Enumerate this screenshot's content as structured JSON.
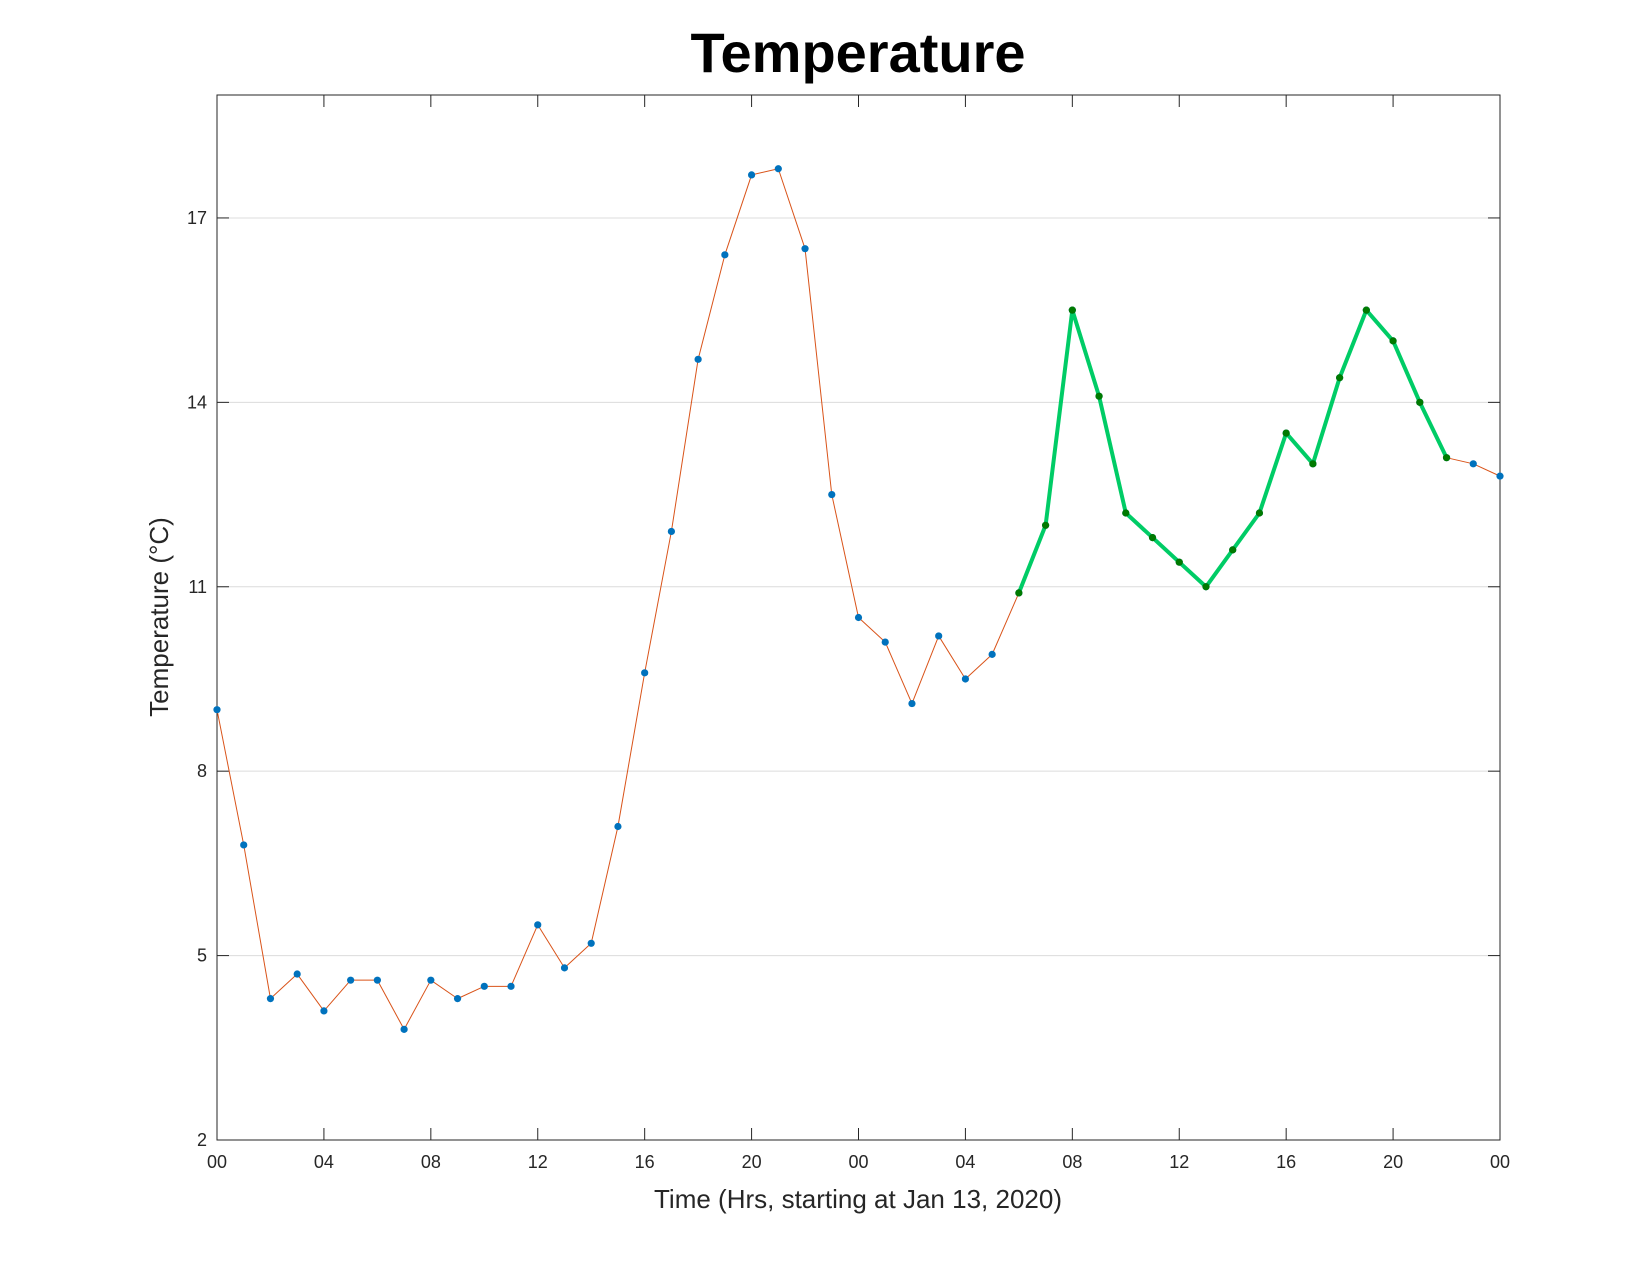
{
  "chart_data": {
    "type": "line",
    "title": "Temperature",
    "xlabel": "Time (Hrs, starting at Jan 13, 2020)",
    "ylabel": "Temperature (°C)",
    "x": [
      0,
      1,
      2,
      3,
      4,
      5,
      6,
      7,
      8,
      9,
      10,
      11,
      12,
      13,
      14,
      15,
      16,
      17,
      18,
      19,
      20,
      21,
      22,
      23,
      24,
      25,
      26,
      27,
      28,
      29,
      30,
      31,
      32,
      33,
      34,
      35,
      36,
      37,
      38,
      39,
      40,
      41,
      42,
      43,
      44,
      45,
      46,
      47,
      48
    ],
    "series": [
      {
        "color": "#d95319",
        "marker_color": "#0072bd",
        "line_width": 1,
        "values": [
          9.0,
          6.8,
          4.3,
          4.7,
          4.1,
          4.6,
          4.6,
          3.8,
          4.6,
          4.3,
          4.5,
          4.5,
          5.5,
          4.8,
          5.2,
          7.1,
          9.6,
          11.9,
          14.7,
          16.4,
          17.7,
          17.8,
          16.5,
          12.5,
          10.5,
          10.1,
          9.1,
          10.2,
          9.5,
          9.9,
          10.9,
          12.0,
          15.5,
          14.1,
          12.2,
          11.8,
          11.4,
          11.0,
          11.6,
          12.2,
          13.5,
          13.0,
          14.4,
          15.5,
          15.0,
          14.0,
          13.1,
          13.0,
          12.8
        ]
      },
      {
        "color": "#00cc66",
        "marker_color": "#007a00",
        "line_width": 4,
        "values": [
          null,
          null,
          null,
          null,
          null,
          null,
          null,
          null,
          null,
          null,
          null,
          null,
          null,
          null,
          null,
          null,
          null,
          null,
          null,
          null,
          null,
          null,
          null,
          null,
          null,
          null,
          null,
          null,
          null,
          null,
          10.9,
          12.0,
          15.5,
          14.1,
          12.2,
          11.8,
          11.4,
          11.0,
          11.6,
          12.2,
          13.5,
          13.0,
          14.4,
          15.5,
          15.0,
          14.0,
          13.1,
          null,
          null
        ]
      }
    ],
    "xlim": [
      0,
      48
    ],
    "xticks": [
      {
        "value": 0,
        "label": "00"
      },
      {
        "value": 4,
        "label": "04"
      },
      {
        "value": 8,
        "label": "08"
      },
      {
        "value": 12,
        "label": "12"
      },
      {
        "value": 16,
        "label": "16"
      },
      {
        "value": 20,
        "label": "20"
      },
      {
        "value": 24,
        "label": "00"
      },
      {
        "value": 28,
        "label": "04"
      },
      {
        "value": 32,
        "label": "08"
      },
      {
        "value": 36,
        "label": "12"
      },
      {
        "value": 40,
        "label": "16"
      },
      {
        "value": 44,
        "label": "20"
      },
      {
        "value": 48,
        "label": "00"
      }
    ],
    "ylim": [
      2,
      19
    ],
    "yticks": [
      2,
      5,
      8,
      11,
      14,
      17
    ],
    "grid": true
  }
}
